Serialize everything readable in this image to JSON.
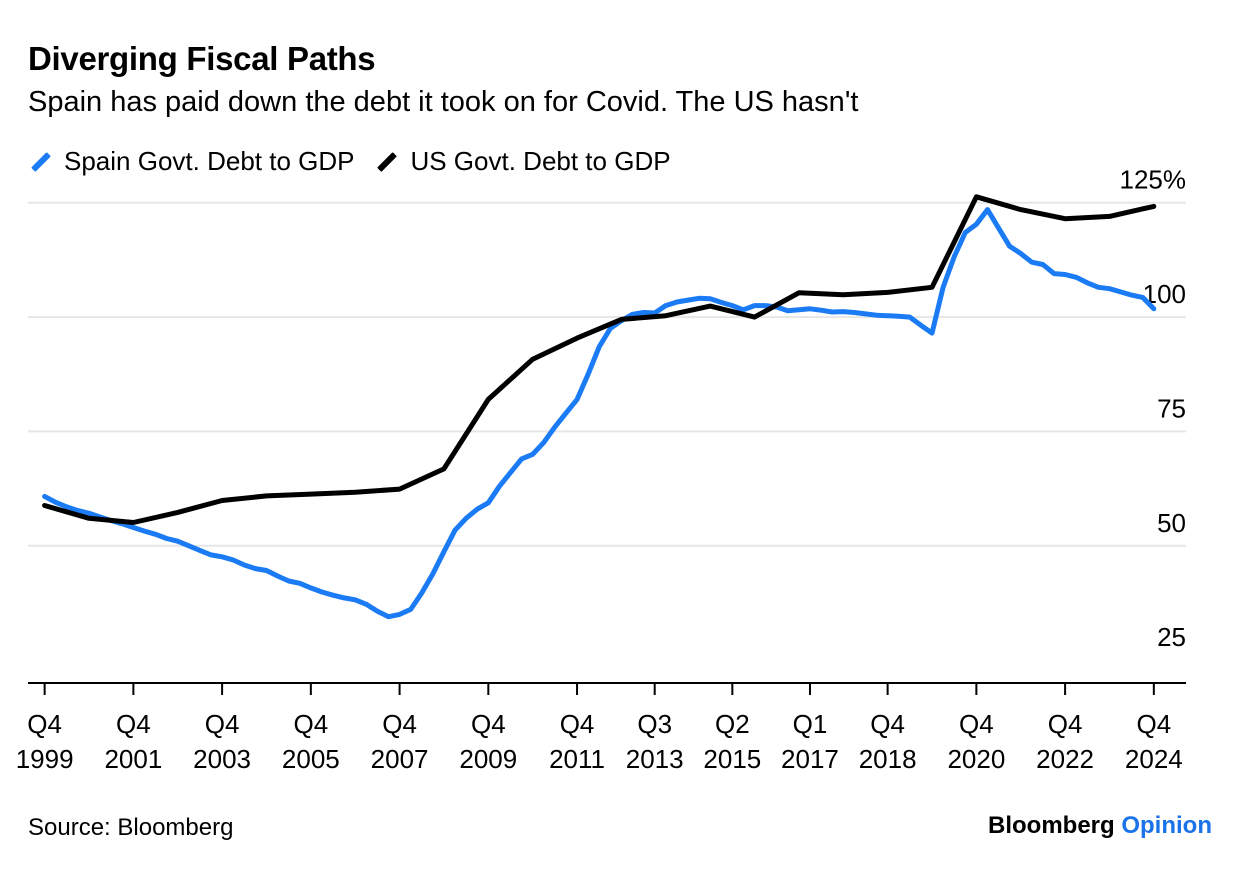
{
  "header": {
    "title": "Diverging Fiscal Paths",
    "subtitle": "Spain has paid down the debt it took on for Covid. The US hasn't"
  },
  "footer": {
    "source": "Source: Bloomberg",
    "brand_main": "Bloomberg",
    "brand_accent": "Opinion"
  },
  "colors": {
    "spain": "#1a7bf5",
    "us": "#000000",
    "grid": "#e6e6e6",
    "axis": "#000000",
    "brand_accent": "#1a73e8"
  },
  "chart_data": {
    "type": "line",
    "title": "Diverging Fiscal Paths",
    "subtitle": "Spain has paid down the debt it took on for Covid. The US hasn't",
    "x_unit": "year",
    "xlim": [
      1999.5,
      2025.6
    ],
    "ylim": [
      20,
      128
    ],
    "y_ticks": [
      {
        "value": 125,
        "label": "125%"
      },
      {
        "value": 100,
        "label": "100"
      },
      {
        "value": 75,
        "label": "75"
      },
      {
        "value": 50,
        "label": "50"
      },
      {
        "value": 25,
        "label": "25"
      }
    ],
    "x_ticks": [
      {
        "value": 1999.875,
        "line1": "Q4",
        "line2": "1999"
      },
      {
        "value": 2001.875,
        "line1": "Q4",
        "line2": "2001"
      },
      {
        "value": 2003.875,
        "line1": "Q4",
        "line2": "2003"
      },
      {
        "value": 2005.875,
        "line1": "Q4",
        "line2": "2005"
      },
      {
        "value": 2007.875,
        "line1": "Q4",
        "line2": "2007"
      },
      {
        "value": 2009.875,
        "line1": "Q4",
        "line2": "2009"
      },
      {
        "value": 2011.875,
        "line1": "Q4",
        "line2": "2011"
      },
      {
        "value": 2013.625,
        "line1": "Q3",
        "line2": "2013"
      },
      {
        "value": 2015.375,
        "line1": "Q2",
        "line2": "2015"
      },
      {
        "value": 2017.125,
        "line1": "Q1",
        "line2": "2017"
      },
      {
        "value": 2018.875,
        "line1": "Q4",
        "line2": "2018"
      },
      {
        "value": 2020.875,
        "line1": "Q4",
        "line2": "2020"
      },
      {
        "value": 2022.875,
        "line1": "Q4",
        "line2": "2022"
      },
      {
        "value": 2024.875,
        "line1": "Q4",
        "line2": "2024"
      }
    ],
    "grid": true,
    "legend_position": "top-left",
    "series": [
      {
        "name": "Spain Govt. Debt to GDP",
        "color": "#1a7bf5",
        "x": [
          1999.875,
          2000.125,
          2000.375,
          2000.625,
          2000.875,
          2001.125,
          2001.375,
          2001.625,
          2001.875,
          2002.125,
          2002.375,
          2002.625,
          2002.875,
          2003.125,
          2003.375,
          2003.625,
          2003.875,
          2004.125,
          2004.375,
          2004.625,
          2004.875,
          2005.125,
          2005.375,
          2005.625,
          2005.875,
          2006.125,
          2006.375,
          2006.625,
          2006.875,
          2007.125,
          2007.375,
          2007.625,
          2007.875,
          2008.125,
          2008.375,
          2008.625,
          2008.875,
          2009.125,
          2009.375,
          2009.625,
          2009.875,
          2010.125,
          2010.375,
          2010.625,
          2010.875,
          2011.125,
          2011.375,
          2011.625,
          2011.875,
          2012.125,
          2012.375,
          2012.625,
          2012.875,
          2013.125,
          2013.375,
          2013.625,
          2013.875,
          2014.125,
          2014.375,
          2014.625,
          2014.875,
          2015.125,
          2015.375,
          2015.625,
          2015.875,
          2016.125,
          2016.375,
          2016.625,
          2016.875,
          2017.125,
          2017.375,
          2017.625,
          2017.875,
          2018.125,
          2018.375,
          2018.625,
          2018.875,
          2019.125,
          2019.375,
          2019.625,
          2019.875,
          2020.125,
          2020.375,
          2020.625,
          2020.875,
          2021.125,
          2021.375,
          2021.625,
          2021.875,
          2022.125,
          2022.375,
          2022.625,
          2022.875,
          2023.125,
          2023.375,
          2023.625,
          2023.875,
          2024.125,
          2024.375,
          2024.625,
          2024.875
        ],
        "values": [
          60.8,
          59.5,
          58.5,
          57.7,
          57.1,
          56.3,
          55.5,
          54.8,
          54.0,
          53.2,
          52.5,
          51.6,
          51.0,
          50.0,
          49.0,
          48.0,
          47.6,
          46.9,
          45.8,
          45.0,
          44.6,
          43.4,
          42.3,
          41.8,
          40.8,
          39.9,
          39.2,
          38.6,
          38.2,
          37.2,
          35.7,
          34.5,
          35.0,
          36.1,
          39.7,
          43.9,
          48.7,
          53.4,
          56.0,
          58.0,
          59.4,
          63.0,
          66.0,
          69.0,
          70.0,
          72.6,
          76.0,
          79.0,
          82.0,
          87.5,
          93.5,
          97.5,
          99.2,
          100.6,
          101.0,
          100.9,
          102.5,
          103.3,
          103.7,
          104.1,
          104.0,
          103.2,
          102.5,
          101.6,
          102.5,
          102.5,
          102.2,
          101.4,
          101.6,
          101.8,
          101.5,
          101.1,
          101.2,
          101.0,
          100.7,
          100.4,
          100.3,
          100.2,
          100.0,
          98.2,
          96.5,
          106.5,
          113.2,
          118.5,
          120.3,
          123.5,
          119.5,
          115.5,
          113.9,
          112.0,
          111.5,
          109.5,
          109.3,
          108.7,
          107.5,
          106.5,
          106.2,
          105.5,
          104.8,
          104.3,
          101.8
        ]
      },
      {
        "name": "US Govt. Debt to GDP",
        "color": "#000000",
        "x": [
          1999.875,
          2000.875,
          2001.875,
          2002.875,
          2003.875,
          2004.875,
          2005.875,
          2006.875,
          2007.875,
          2008.875,
          2009.875,
          2010.875,
          2011.875,
          2012.875,
          2013.875,
          2014.875,
          2015.875,
          2016.875,
          2017.875,
          2018.875,
          2019.875,
          2020.875,
          2021.875,
          2022.875,
          2023.875,
          2024.875
        ],
        "values": [
          58.8,
          56.0,
          55.1,
          57.3,
          59.9,
          60.9,
          61.3,
          61.7,
          62.4,
          66.8,
          82.0,
          90.8,
          95.4,
          99.5,
          100.3,
          102.4,
          100.0,
          105.3,
          104.9,
          105.4,
          106.5,
          126.3,
          123.5,
          121.5,
          122.0,
          124.2
        ]
      }
    ]
  }
}
